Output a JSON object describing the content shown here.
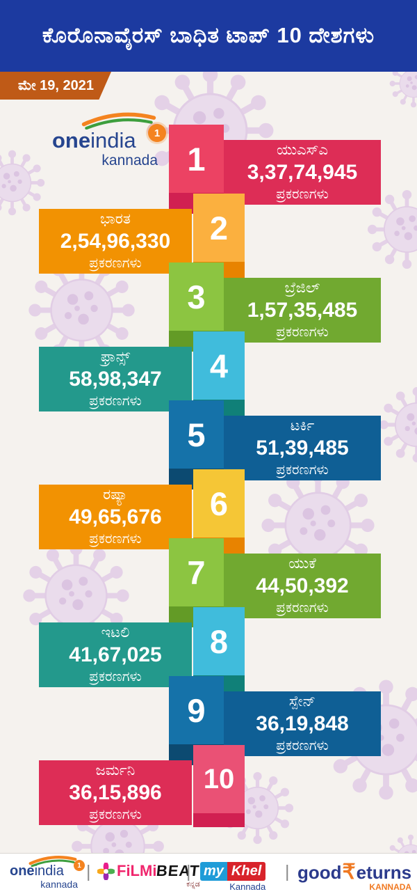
{
  "header": {
    "title": "ಕೊರೊನಾವೈರಸ್ ಬಾಧಿತ ಟಾಪ್ 10 ದೇಶಗಳು",
    "date": "ಮೇ 19, 2021",
    "bg_color": "#1c3aa0",
    "date_bg_color": "#bf5a17"
  },
  "brand": {
    "one": "one",
    "india": "india",
    "sub": "kannada",
    "badge": "1"
  },
  "rows": [
    {
      "rank": "1",
      "country": "ಯುಎಸ್ಎ",
      "cases": "3,37,74,945",
      "cases_label": "ಪ್ರಕರಣಗಳು",
      "colors": {
        "block": "#ec4263",
        "notch": "#d12051",
        "box": "#dd2d56"
      }
    },
    {
      "rank": "2",
      "country": "ಭಾರತ",
      "cases": "2,54,96,330",
      "cases_label": "ಪ್ರಕರಣಗಳು",
      "colors": {
        "block": "#fbb03f",
        "notch": "#e88300",
        "box": "#f29202"
      }
    },
    {
      "rank": "3",
      "country": "ಬ್ರೆಜಿಲ್",
      "cases": "1,57,35,485",
      "cases_label": "ಪ್ರಕರಣಗಳು",
      "colors": {
        "block": "#8cc541",
        "notch": "#639b26",
        "box": "#71a930"
      }
    },
    {
      "rank": "4",
      "country": "ಫ್ರಾನ್ಸ್",
      "cases": "58,98,347",
      "cases_label": "ಪ್ರಕರಣಗಳು",
      "colors": {
        "block": "#40bcdc",
        "notch": "#108078",
        "box": "#23998c"
      }
    },
    {
      "rank": "5",
      "country": "ಟರ್ಕಿ",
      "cases": "51,39,485",
      "cases_label": "ಪ್ರಕರಣಗಳು",
      "colors": {
        "block": "#1572a9",
        "notch": "#0c4a71",
        "box": "#0f5f95"
      }
    },
    {
      "rank": "6",
      "country": "ರಷ್ಯಾ",
      "cases": "49,65,676",
      "cases_label": "ಪ್ರಕರಣಗಳು",
      "colors": {
        "block": "#f5c636",
        "notch": "#e88300",
        "box": "#f29202"
      }
    },
    {
      "rank": "7",
      "country": "ಯುಕೆ",
      "cases": "44,50,392",
      "cases_label": "ಪ್ರಕರಣಗಳು",
      "colors": {
        "block": "#8cc541",
        "notch": "#639b26",
        "box": "#71a930"
      }
    },
    {
      "rank": "8",
      "country": "ಇಟಲಿ",
      "cases": "41,67,025",
      "cases_label": "ಪ್ರಕರಣಗಳು",
      "colors": {
        "block": "#40bcdc",
        "notch": "#108078",
        "box": "#23998c"
      }
    },
    {
      "rank": "9",
      "country": "ಸ್ಪೇನ್",
      "cases": "36,19,848",
      "cases_label": "ಪ್ರಕರಣಗಳು",
      "colors": {
        "block": "#1572a9",
        "notch": "#0c4a71",
        "box": "#0f5f95"
      }
    },
    {
      "rank": "10",
      "country": "ಜರ್ಮನಿ",
      "cases": "36,15,896",
      "cases_label": "ಪ್ರಕರಣಗಳು",
      "colors": {
        "block": "#ea5175",
        "notch": "#d12051",
        "box": "#dd2d56"
      }
    }
  ],
  "footer": {
    "separator": "|",
    "filmibeat": {
      "part1": "FiLMi",
      "part2": "BEAT",
      "sub": "ಕನ್ನಡ"
    },
    "mykhel": {
      "part1": "my",
      "part2": "Khel",
      "sub": "Kannada"
    },
    "goodreturns": {
      "part1": "good",
      "rupee": "₹",
      "part2": "eturns",
      "sub": "KANNADA"
    }
  },
  "chart_data": {
    "type": "table",
    "title": "ಕೊರೊನಾವೈರಸ್ ಬಾಧಿತ ಟಾಪ್ 10 ದೇಶಗಳು",
    "date": "ಮೇ 19, 2021",
    "value_label": "ಪ್ರಕರಣಗಳು",
    "categories": [
      "ಯುಎಸ್ಎ",
      "ಭಾರತ",
      "ಬ್ರೆಜಿಲ್",
      "ಫ್ರಾನ್ಸ್",
      "ಟರ್ಕಿ",
      "ರಷ್ಯಾ",
      "ಯುಕೆ",
      "ಇಟಲಿ",
      "ಸ್ಪೇನ್",
      "ಜರ್ಮನಿ"
    ],
    "values": [
      33774945,
      25496330,
      15735485,
      5898347,
      5139485,
      4965676,
      4450392,
      4167025,
      3619848,
      3615896
    ],
    "ranks": [
      1,
      2,
      3,
      4,
      5,
      6,
      7,
      8,
      9,
      10
    ]
  }
}
